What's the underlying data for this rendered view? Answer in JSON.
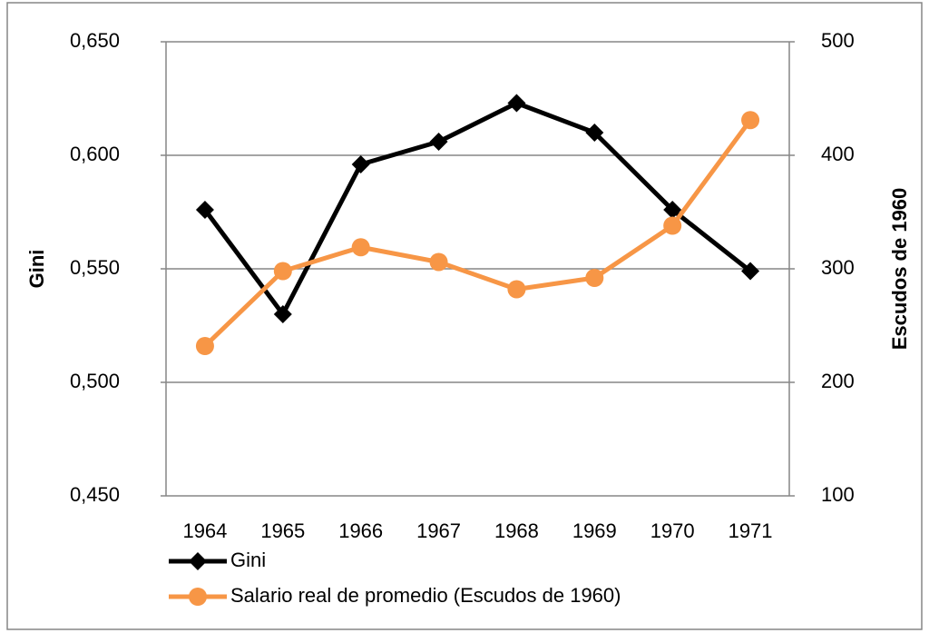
{
  "chart_data": {
    "type": "line",
    "categories": [
      "1964",
      "1965",
      "1966",
      "1967",
      "1968",
      "1969",
      "1970",
      "1971"
    ],
    "y_label": "Gini",
    "y2_label": "Escudos de 1960",
    "ylim": [
      0.45,
      0.65
    ],
    "yticks": [
      {
        "value": 0.45,
        "label": "0,450"
      },
      {
        "value": 0.5,
        "label": "0,500"
      },
      {
        "value": 0.55,
        "label": "0,550"
      },
      {
        "value": 0.6,
        "label": "0,600"
      },
      {
        "value": 0.65,
        "label": "0,650"
      }
    ],
    "y2lim": [
      100,
      500
    ],
    "y2ticks": [
      100,
      200,
      300,
      400,
      500
    ],
    "grid": true,
    "legend": "bottom",
    "series": [
      {
        "name": "Gini",
        "color": "#000000",
        "marker": "diamond",
        "values": [
          0.576,
          0.53,
          0.596,
          0.606,
          0.623,
          0.61,
          0.576,
          0.549
        ]
      },
      {
        "name": "Salario real de promedio (Escudos de 1960)",
        "color": "#f79646",
        "marker": "circle",
        "axis": "y2",
        "values": [
          232,
          298,
          319,
          306,
          282,
          292,
          338,
          431
        ]
      }
    ]
  }
}
